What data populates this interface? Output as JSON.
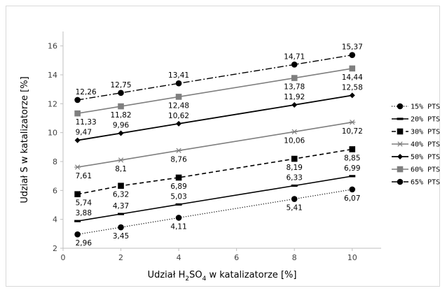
{
  "chart_data": {
    "type": "scatter",
    "title": "",
    "xlabel_parts": [
      "Udział H",
      "2",
      "SO",
      "4",
      " w katalizatorze [%]"
    ],
    "ylabel": "Udział S w katalizatorze [%]",
    "xlim": [
      0,
      11
    ],
    "ylim": [
      2,
      17
    ],
    "xticks": [
      0,
      2,
      4,
      6,
      8,
      10
    ],
    "yticks": [
      2,
      4,
      6,
      8,
      10,
      12,
      14,
      16
    ],
    "grid": false,
    "legend_position": "right",
    "x": [
      0.5,
      2,
      4,
      8,
      10
    ],
    "series": [
      {
        "name": "15% PTS",
        "values": [
          2.96,
          3.45,
          4.11,
          5.41,
          6.07
        ],
        "labels": [
          "2,96",
          "3,45",
          "4,11",
          "5,41",
          "6,07"
        ],
        "color": "#000000",
        "dash": "1.2,2.2",
        "marker": "circle",
        "lw": 1.2,
        "labelPos": [
          "below",
          "below",
          "below",
          "below",
          "below"
        ]
      },
      {
        "name": "20% PTS",
        "values": [
          3.88,
          4.37,
          5.03,
          6.33,
          6.99
        ],
        "labels": [
          "3,88",
          "4,37",
          "5,03",
          "6,33",
          "6,99"
        ],
        "color": "#000000",
        "dash": "",
        "marker": "dash",
        "lw": 1.6,
        "labelPos": [
          "above",
          "above",
          "above",
          "above",
          "above"
        ]
      },
      {
        "name": "30% PTS",
        "values": [
          5.74,
          6.32,
          6.89,
          8.19,
          8.85
        ],
        "labels": [
          "5,74",
          "6,32",
          "6,89",
          "8,19",
          "8,85"
        ],
        "color": "#000000",
        "dash": "6,4",
        "marker": "square",
        "lw": 1.6,
        "labelPos": [
          "below",
          "below",
          "below",
          "below",
          "below"
        ]
      },
      {
        "name": "40% PTS",
        "values": [
          7.61,
          8.1,
          8.76,
          10.06,
          10.72
        ],
        "labels": [
          "7,61",
          "8,1",
          "8,76",
          "10,06",
          "10,72"
        ],
        "color": "#7f7f7f",
        "dash": "",
        "marker": "star",
        "lw": 1.6,
        "labelPos": [
          "below",
          "below",
          "below",
          "below",
          "below"
        ]
      },
      {
        "name": "50% PTS",
        "values": [
          9.47,
          9.96,
          10.62,
          11.92,
          12.58
        ],
        "labels": [
          "9,47",
          "9,96",
          "10,62",
          "11,92",
          "12,58"
        ],
        "color": "#000000",
        "dash": "",
        "marker": "diamond",
        "lw": 1.8,
        "labelPos": [
          "above",
          "above",
          "above",
          "above",
          "above"
        ]
      },
      {
        "name": "60% PTS",
        "values": [
          11.33,
          11.82,
          12.48,
          13.78,
          14.44
        ],
        "labels": [
          "11,33",
          "11,82",
          "12,48",
          "13,78",
          "14,44"
        ],
        "color": "#7f7f7f",
        "dash": "",
        "marker": "square",
        "lw": 1.6,
        "labelPos": [
          "below",
          "below",
          "below",
          "below",
          "below"
        ]
      },
      {
        "name": "65% PTS",
        "values": [
          12.26,
          12.75,
          13.41,
          14.71,
          15.37
        ],
        "labels": [
          "12,26",
          "12,75",
          "13,41",
          "14,71",
          "15,37"
        ],
        "color": "#000000",
        "dash": "9,3,2,3",
        "marker": "circle",
        "lw": 1.4,
        "labelPos": [
          "above",
          "above",
          "above",
          "above",
          "above"
        ]
      }
    ]
  }
}
